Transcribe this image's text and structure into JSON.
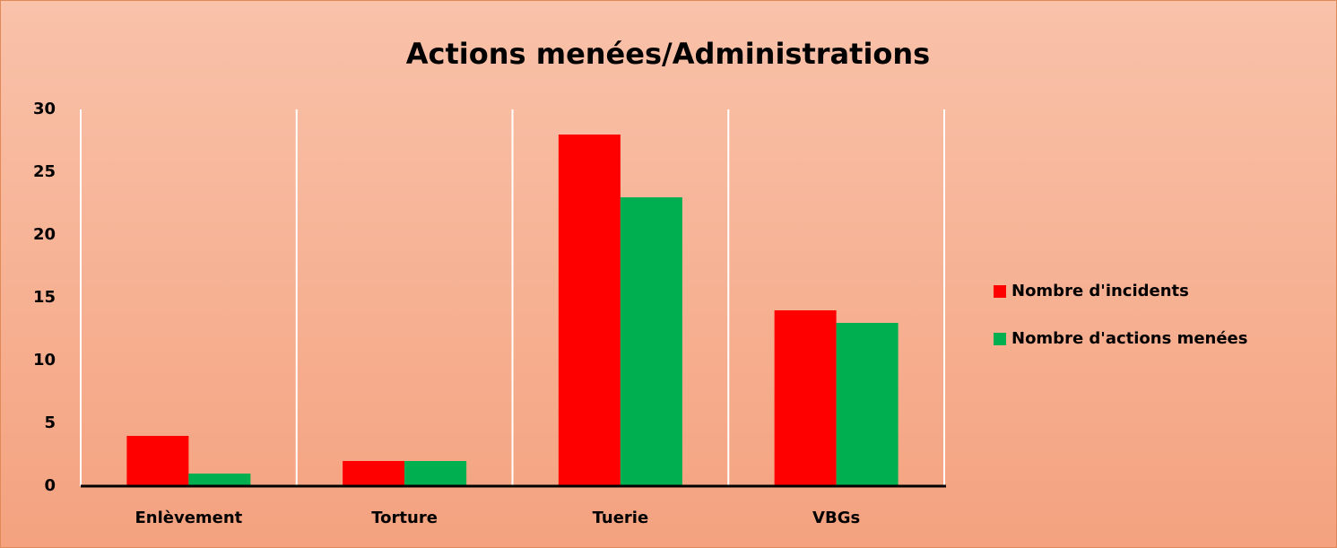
{
  "chart_data": {
    "type": "bar",
    "title": "Actions menées/Administrations",
    "categories": [
      "Enlèvement",
      "Torture",
      "Tuerie",
      "VBGs"
    ],
    "series": [
      {
        "name": "Nombre d'incidents",
        "color": "#ff0000",
        "values": [
          4,
          2,
          28,
          14
        ]
      },
      {
        "name": "Nombre d'actions menées",
        "color": "#00b050",
        "values": [
          1,
          2,
          23,
          13
        ]
      }
    ],
    "ylim": [
      0,
      30
    ],
    "yticks": [
      0,
      5,
      10,
      15,
      20,
      25,
      30
    ],
    "grid": false,
    "legend": "right"
  }
}
